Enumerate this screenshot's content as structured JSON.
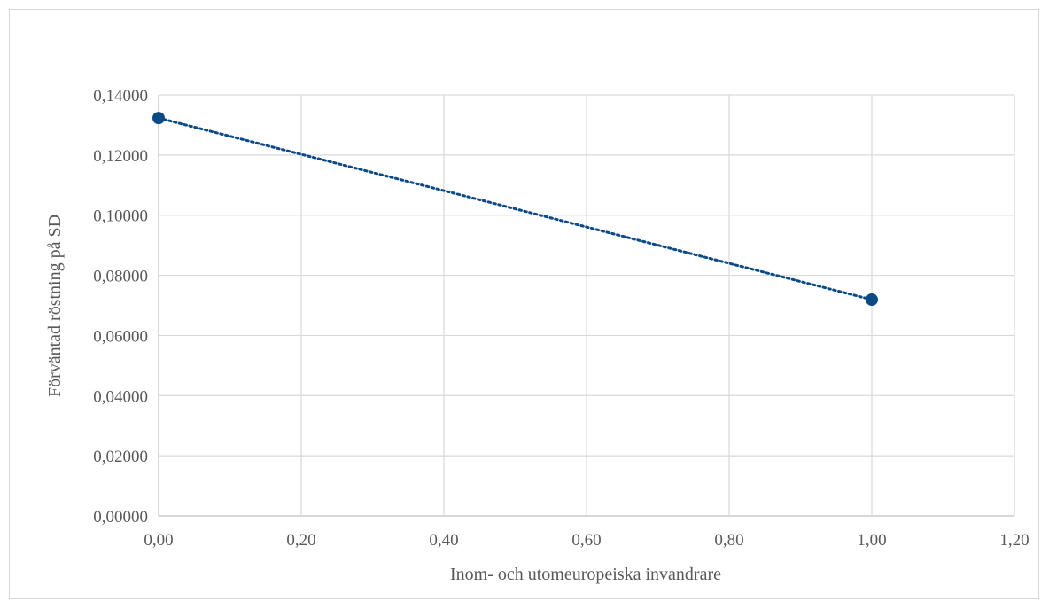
{
  "chart_data": {
    "type": "scatter",
    "title": "",
    "xlabel": "Inom- och utomeuropeiska invandrare",
    "ylabel": "Förväntad röstning på SD",
    "xlim": [
      0,
      1.2
    ],
    "ylim": [
      0,
      0.14
    ],
    "x_ticks": [
      "0,00",
      "0,20",
      "0,40",
      "0,60",
      "0,80",
      "1,00",
      "1,20"
    ],
    "y_ticks": [
      "0,00000",
      "0,02000",
      "0,04000",
      "0,06000",
      "0,08000",
      "0,10000",
      "0,12000",
      "0,14000"
    ],
    "grid": true,
    "series": [
      {
        "points": [
          {
            "x": 0.0,
            "y": 0.1323
          },
          {
            "x": 1.0,
            "y": 0.0719
          }
        ]
      }
    ],
    "trendline": {
      "type": "linear",
      "style": "dotted"
    },
    "colors": {
      "marker": "#0b4a86",
      "trendline": "#0b4a86",
      "grid": "#d9d9d9",
      "axis": "#bfbfbf",
      "text": "#595959"
    }
  }
}
